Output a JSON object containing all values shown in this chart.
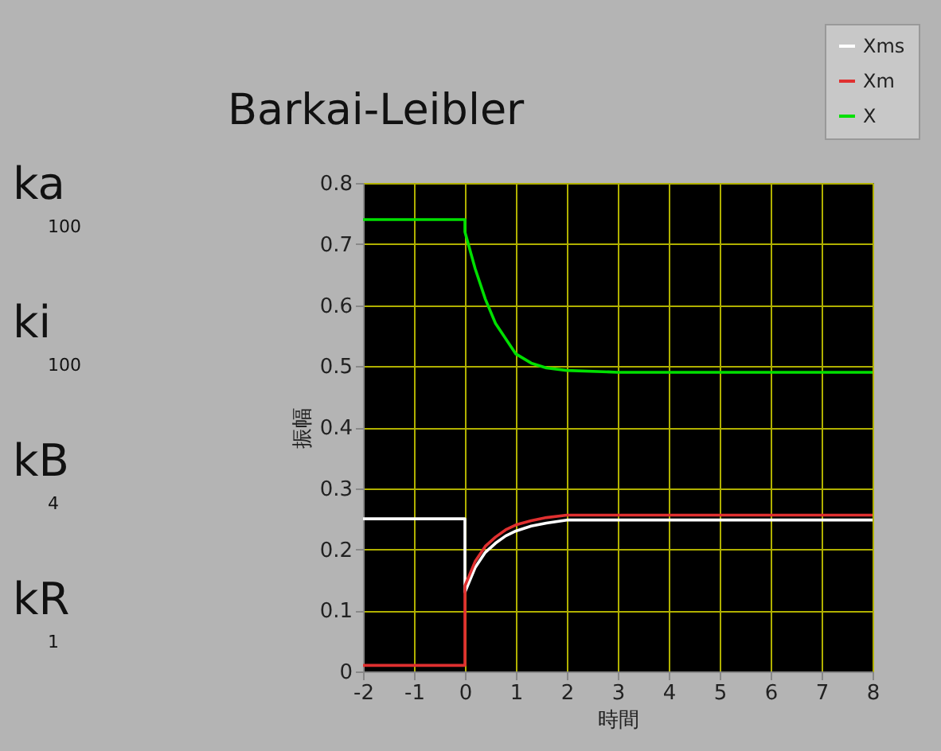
{
  "chart_data": {
    "type": "line",
    "title": "Barkai-Leibler",
    "xlabel": "時間",
    "ylabel": "振幅",
    "x": [
      -2,
      0,
      0,
      0.2,
      0.4,
      0.6,
      0.8,
      1.0,
      1.3,
      1.6,
      2.0,
      3.0,
      8
    ],
    "series": [
      {
        "name": "Xms",
        "color": "#ffffff",
        "values": [
          0.25,
          0.25,
          0.13,
          0.17,
          0.195,
          0.21,
          0.222,
          0.23,
          0.238,
          0.243,
          0.248,
          0.248,
          0.248
        ]
      },
      {
        "name": "Xm",
        "color": "#e03030",
        "values": [
          0.01,
          0.01,
          0.14,
          0.18,
          0.205,
          0.22,
          0.232,
          0.24,
          0.247,
          0.252,
          0.256,
          0.256,
          0.256
        ]
      },
      {
        "name": "X",
        "color": "#00e000",
        "values": [
          0.74,
          0.74,
          0.72,
          0.66,
          0.61,
          0.57,
          0.545,
          0.52,
          0.505,
          0.497,
          0.493,
          0.49,
          0.49
        ]
      }
    ],
    "xlim": [
      -2,
      8
    ],
    "xticks": [
      -2,
      -1,
      0,
      1,
      2,
      3,
      4,
      5,
      6,
      7,
      8
    ],
    "ylim": [
      0,
      0.8
    ],
    "yticks": [
      {
        "value": 0,
        "label": "0"
      },
      0.1,
      0.2,
      0.3,
      0.4,
      0.5,
      0.6,
      0.7,
      0.8
    ],
    "grid": true,
    "legend": "top right",
    "marker": "none",
    "line_style": "solid",
    "annotations": [
      "ka",
      "100",
      "ki",
      "100",
      "kB",
      "4",
      "kR",
      "1"
    ]
  }
}
